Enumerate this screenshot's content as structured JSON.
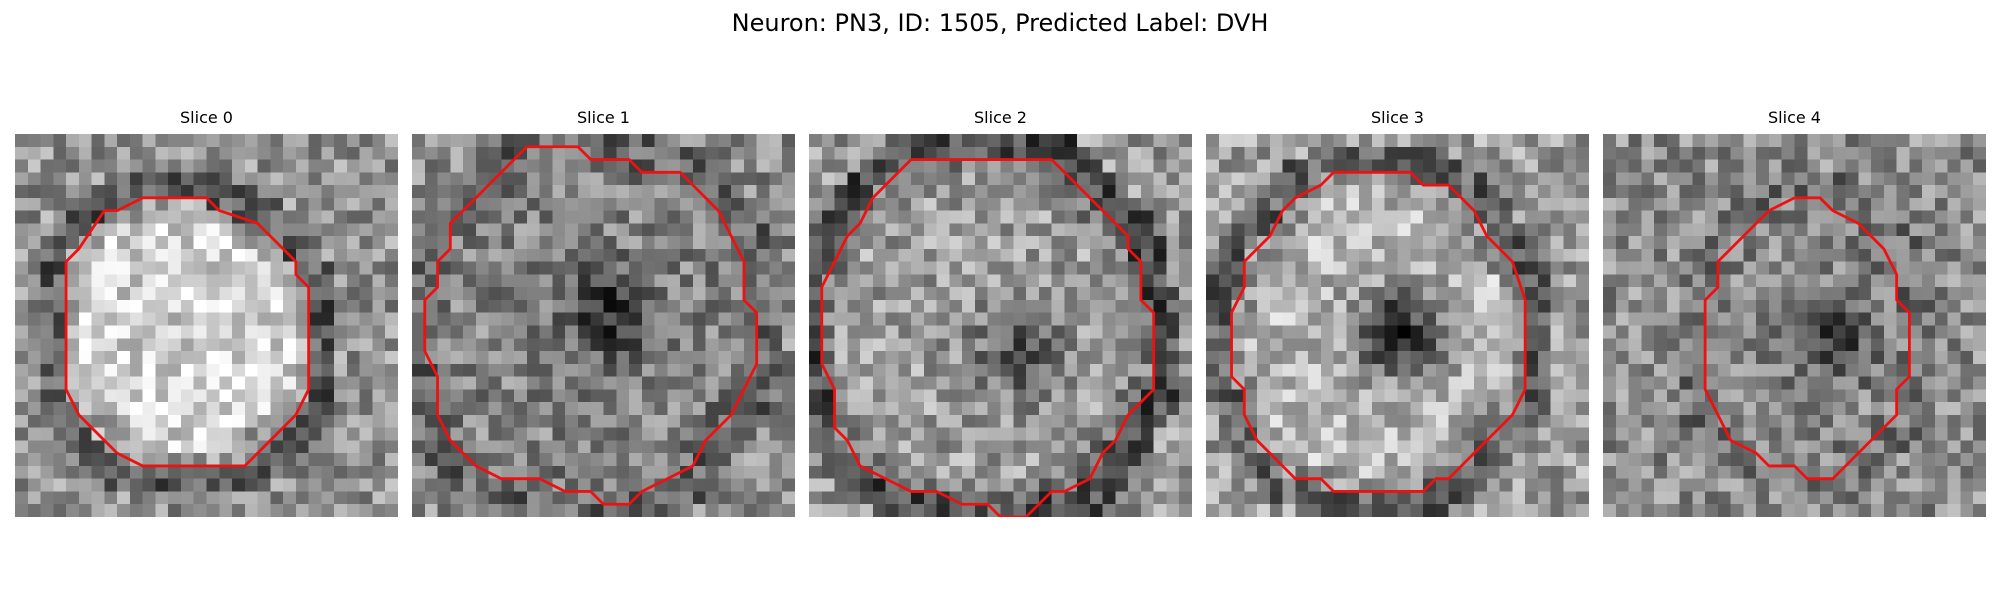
{
  "figure": {
    "title": "Neuron: PN3, ID: 1505, Predicted Label: DVH"
  },
  "slices": [
    {
      "label": "Slice 0",
      "seed": 11,
      "interior": 0.82,
      "rim": 0.35,
      "bg": 0.58,
      "dark_center": 0.0,
      "contour": [
        [
          12,
          5
        ],
        [
          15,
          5
        ],
        [
          16,
          6
        ],
        [
          19,
          7
        ],
        [
          20,
          8
        ],
        [
          22,
          10
        ],
        [
          22,
          11
        ],
        [
          23,
          12
        ],
        [
          23,
          20
        ],
        [
          22,
          22
        ],
        [
          20,
          24
        ],
        [
          18,
          26
        ],
        [
          10,
          26
        ],
        [
          8,
          25
        ],
        [
          6,
          23
        ],
        [
          5,
          22
        ],
        [
          4,
          20
        ],
        [
          4,
          10
        ],
        [
          5,
          9
        ],
        [
          7,
          6
        ],
        [
          8,
          6
        ],
        [
          10,
          5
        ],
        [
          12,
          5
        ]
      ]
    },
    {
      "label": "Slice 1",
      "seed": 29,
      "interior": 0.52,
      "rim": 0.4,
      "bg": 0.55,
      "dark_center": 0.35,
      "contour": [
        [
          9,
          1
        ],
        [
          13,
          1
        ],
        [
          14,
          2
        ],
        [
          17,
          2
        ],
        [
          18,
          3
        ],
        [
          21,
          3
        ],
        [
          22,
          4
        ],
        [
          23,
          5
        ],
        [
          24,
          6
        ],
        [
          25,
          8
        ],
        [
          26,
          10
        ],
        [
          26,
          13
        ],
        [
          27,
          14
        ],
        [
          27,
          18
        ],
        [
          26,
          20
        ],
        [
          25,
          22
        ],
        [
          24,
          23
        ],
        [
          23,
          24
        ],
        [
          22,
          26
        ],
        [
          20,
          27
        ],
        [
          18,
          28
        ],
        [
          17,
          29
        ],
        [
          15,
          29
        ],
        [
          14,
          28
        ],
        [
          12,
          28
        ],
        [
          10,
          27
        ],
        [
          7,
          27
        ],
        [
          5,
          26
        ],
        [
          3,
          24
        ],
        [
          2,
          22
        ],
        [
          2,
          19
        ],
        [
          1,
          17
        ],
        [
          1,
          13
        ],
        [
          2,
          12
        ],
        [
          2,
          10
        ],
        [
          3,
          9
        ],
        [
          3,
          7
        ],
        [
          4,
          6
        ],
        [
          5,
          5
        ],
        [
          6,
          4
        ],
        [
          7,
          3
        ],
        [
          8,
          2
        ],
        [
          9,
          1
        ]
      ]
    },
    {
      "label": "Slice 2",
      "seed": 47,
      "interior": 0.62,
      "rim": 0.3,
      "bg": 0.6,
      "dark_center": 0.3,
      "contour": [
        [
          8,
          2
        ],
        [
          19,
          2
        ],
        [
          20,
          3
        ],
        [
          22,
          5
        ],
        [
          23,
          6
        ],
        [
          25,
          8
        ],
        [
          25,
          9
        ],
        [
          26,
          10
        ],
        [
          26,
          13
        ],
        [
          27,
          14
        ],
        [
          27,
          20
        ],
        [
          26,
          21
        ],
        [
          25,
          22
        ],
        [
          24,
          24
        ],
        [
          23,
          25
        ],
        [
          22,
          27
        ],
        [
          20,
          28
        ],
        [
          19,
          28
        ],
        [
          18,
          29
        ],
        [
          17,
          30
        ],
        [
          15,
          30
        ],
        [
          14,
          29
        ],
        [
          12,
          29
        ],
        [
          10,
          28
        ],
        [
          8,
          28
        ],
        [
          6,
          27
        ],
        [
          4,
          26
        ],
        [
          3,
          24
        ],
        [
          2,
          23
        ],
        [
          2,
          20
        ],
        [
          1,
          18
        ],
        [
          1,
          12
        ],
        [
          2,
          10
        ],
        [
          3,
          8
        ],
        [
          4,
          7
        ],
        [
          5,
          5
        ],
        [
          7,
          3
        ],
        [
          8,
          2
        ]
      ]
    },
    {
      "label": "Slice 3",
      "seed": 63,
      "interior": 0.72,
      "rim": 0.38,
      "bg": 0.62,
      "dark_center": 0.55,
      "contour": [
        [
          10,
          3
        ],
        [
          16,
          3
        ],
        [
          17,
          4
        ],
        [
          19,
          4
        ],
        [
          20,
          5
        ],
        [
          21,
          6
        ],
        [
          22,
          8
        ],
        [
          23,
          9
        ],
        [
          24,
          10
        ],
        [
          25,
          13
        ],
        [
          25,
          20
        ],
        [
          24,
          22
        ],
        [
          23,
          23
        ],
        [
          22,
          24
        ],
        [
          21,
          25
        ],
        [
          20,
          26
        ],
        [
          19,
          27
        ],
        [
          18,
          27
        ],
        [
          17,
          28
        ],
        [
          10,
          28
        ],
        [
          9,
          27
        ],
        [
          7,
          27
        ],
        [
          6,
          26
        ],
        [
          5,
          25
        ],
        [
          4,
          24
        ],
        [
          3,
          22
        ],
        [
          3,
          20
        ],
        [
          2,
          19
        ],
        [
          2,
          14
        ],
        [
          3,
          12
        ],
        [
          3,
          10
        ],
        [
          4,
          9
        ],
        [
          5,
          8
        ],
        [
          6,
          6
        ],
        [
          7,
          5
        ],
        [
          9,
          4
        ],
        [
          10,
          3
        ]
      ]
    },
    {
      "label": "Slice 4",
      "seed": 85,
      "interior": 0.55,
      "rim": 0.45,
      "bg": 0.55,
      "dark_center": 0.3,
      "contour": [
        [
          15,
          5
        ],
        [
          17,
          5
        ],
        [
          18,
          6
        ],
        [
          20,
          7
        ],
        [
          22,
          9
        ],
        [
          23,
          11
        ],
        [
          23,
          13
        ],
        [
          24,
          14
        ],
        [
          24,
          19
        ],
        [
          23,
          20
        ],
        [
          23,
          22
        ],
        [
          22,
          23
        ],
        [
          21,
          24
        ],
        [
          20,
          25
        ],
        [
          19,
          26
        ],
        [
          18,
          27
        ],
        [
          16,
          27
        ],
        [
          15,
          26
        ],
        [
          13,
          26
        ],
        [
          12,
          25
        ],
        [
          10,
          24
        ],
        [
          9,
          22
        ],
        [
          8,
          20
        ],
        [
          8,
          13
        ],
        [
          9,
          12
        ],
        [
          9,
          10
        ],
        [
          10,
          9
        ],
        [
          11,
          8
        ],
        [
          12,
          7
        ],
        [
          13,
          6
        ],
        [
          15,
          5
        ]
      ]
    }
  ]
}
